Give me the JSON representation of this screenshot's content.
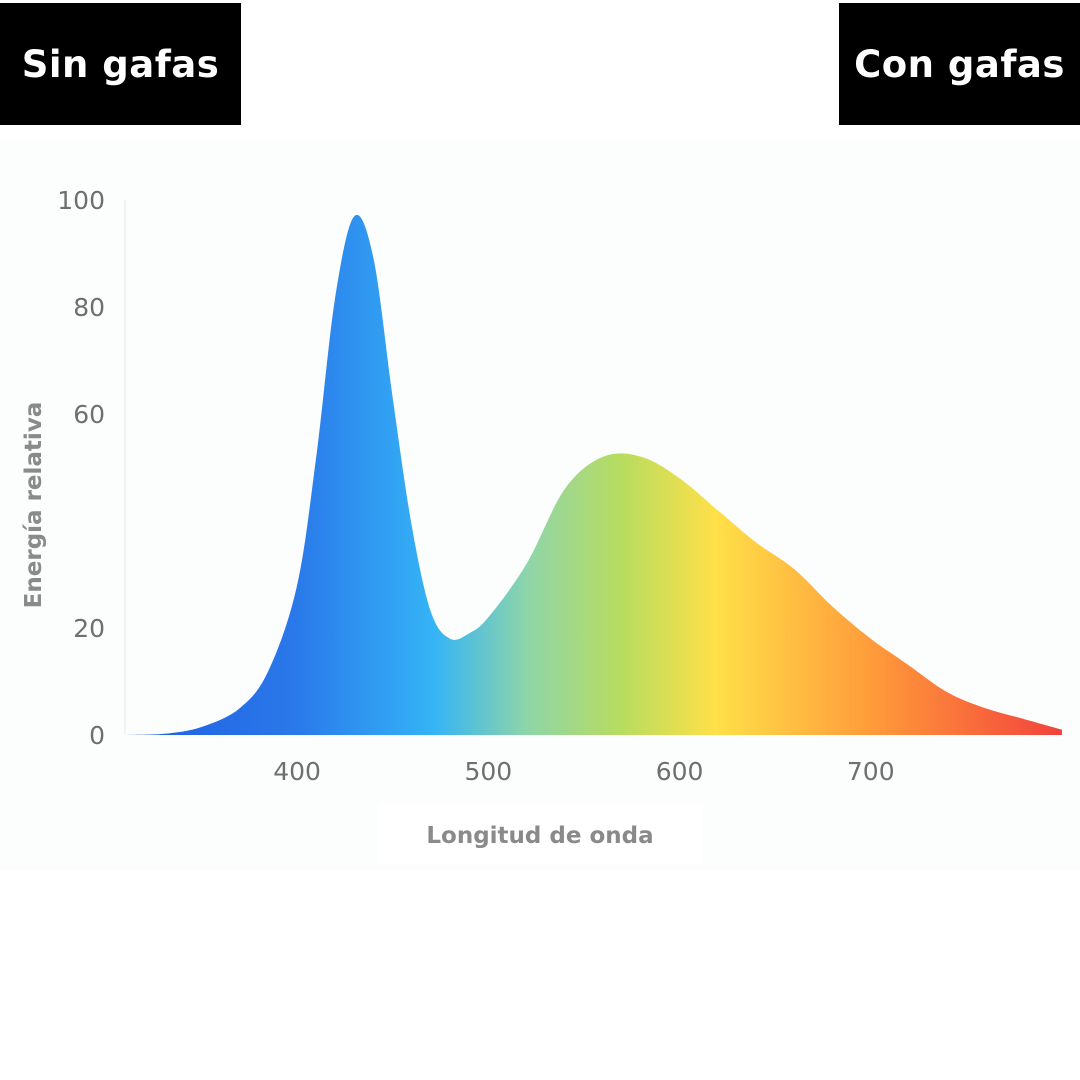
{
  "labels": {
    "left": "Sin gafas",
    "right": "Con gafas"
  },
  "colors": {
    "tab_bg": "#000000",
    "tab_text": "#ffffff",
    "spectrum": [
      "#1f5fe0",
      "#2a78ea",
      "#35b4f6",
      "#8fd5a8",
      "#b8dc60",
      "#ffe048",
      "#ff9a3a",
      "#f2423c"
    ]
  },
  "chart_data": {
    "type": "area",
    "xlabel": "Longitud de onda",
    "ylabel": "Energía relativa",
    "xlim": [
      310,
      800
    ],
    "ylim": [
      0,
      100
    ],
    "xticks": [
      400,
      500,
      600,
      700
    ],
    "yticks": [
      0,
      20,
      60,
      80,
      100
    ],
    "grid": false,
    "fill": "visible-spectrum-gradient",
    "x": [
      310,
      330,
      350,
      370,
      385,
      400,
      410,
      420,
      430,
      440,
      450,
      460,
      470,
      480,
      490,
      500,
      520,
      540,
      560,
      580,
      600,
      620,
      640,
      660,
      680,
      700,
      720,
      740,
      760,
      780,
      800
    ],
    "y": [
      0,
      0.2,
      1.5,
      5,
      12,
      28,
      52,
      82,
      97,
      89,
      63,
      39,
      23,
      18,
      19,
      22,
      32,
      46,
      52,
      52,
      48,
      42,
      36,
      31,
      24,
      18,
      13,
      8,
      5,
      3,
      1
    ]
  }
}
